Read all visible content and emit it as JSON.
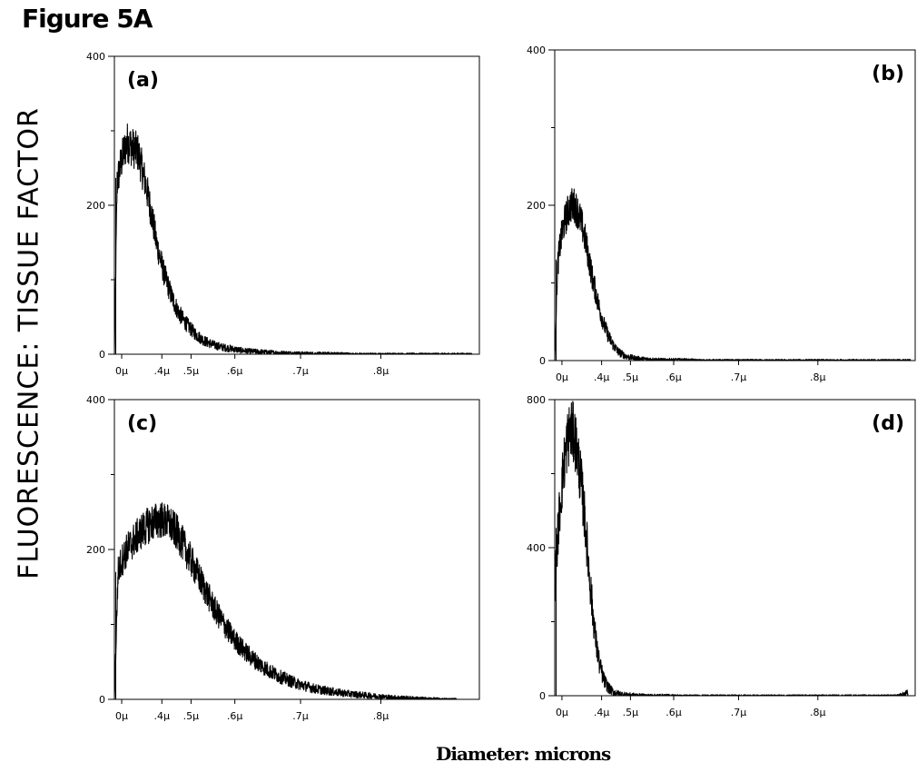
{
  "figure_title": "Figure 5A",
  "y_axis_label": "FLUORESCENCE:  TISSUE FACTOR",
  "x_axis_label": "Diameter:  microns",
  "chart_data": [
    {
      "type": "area",
      "panel_label": "(a)",
      "label_position": "top-left",
      "ylim": [
        0,
        400
      ],
      "yticks": [
        "0",
        "200",
        "400"
      ],
      "xticks": [
        "0µ",
        ".4µ",
        ".5µ",
        ".6µ",
        ".7µ",
        ".8µ"
      ],
      "series": [
        {
          "x": [
            0,
            3,
            6,
            10,
            14,
            18,
            22,
            26,
            30,
            34,
            38,
            42,
            46,
            50,
            54,
            58,
            62,
            66,
            70,
            75,
            80,
            85,
            90,
            95,
            100,
            110,
            120,
            130,
            140,
            150,
            165,
            180,
            200,
            220,
            240,
            260,
            280,
            300,
            320,
            340,
            360,
            380,
            392
          ],
          "y": [
            0,
            230,
            250,
            270,
            285,
            280,
            275,
            270,
            250,
            230,
            205,
            180,
            150,
            130,
            110,
            95,
            80,
            68,
            57,
            47,
            39,
            32,
            26,
            21,
            17,
            12,
            9,
            7,
            5,
            4,
            3,
            2,
            1.5,
            1,
            1,
            0.5,
            0.5,
            0.5,
            0.5,
            0.5,
            0.5,
            0.5,
            0.5
          ]
        }
      ]
    },
    {
      "type": "area",
      "panel_label": "(b)",
      "label_position": "top-right",
      "ylim": [
        0,
        400
      ],
      "yticks": [
        "0",
        "200",
        "400"
      ],
      "xticks": [
        "0µ",
        ".4µ",
        ".5µ",
        ".6µ",
        ".7µ",
        ".8µ"
      ],
      "series": [
        {
          "x": [
            0,
            3,
            6,
            10,
            14,
            18,
            22,
            26,
            30,
            34,
            38,
            42,
            46,
            50,
            55,
            60,
            65,
            70,
            75,
            80,
            90,
            100,
            110,
            120,
            140,
            160,
            180,
            200,
            240,
            280,
            320,
            360,
            395
          ],
          "y": [
            0,
            120,
            150,
            175,
            190,
            200,
            200,
            190,
            175,
            155,
            130,
            105,
            85,
            65,
            45,
            30,
            20,
            12,
            8,
            5,
            3,
            2,
            1.5,
            1,
            1,
            0.5,
            0.5,
            0.5,
            0.5,
            0.5,
            0.5,
            0.5,
            0.5
          ]
        }
      ]
    },
    {
      "type": "area",
      "panel_label": "(c)",
      "label_position": "top-left",
      "ylim": [
        0,
        400
      ],
      "yticks": [
        "0",
        "200",
        "400"
      ],
      "xticks": [
        "0µ",
        ".4µ",
        ".5µ",
        ".6µ",
        ".7µ",
        ".8µ"
      ],
      "series": [
        {
          "x": [
            0,
            4,
            8,
            14,
            20,
            30,
            40,
            50,
            60,
            70,
            80,
            90,
            100,
            110,
            120,
            130,
            140,
            150,
            160,
            170,
            180,
            190,
            200,
            220,
            240,
            260,
            280,
            300,
            320,
            340,
            360,
            375
          ],
          "y": [
            0,
            170,
            185,
            200,
            210,
            225,
            235,
            240,
            235,
            220,
            195,
            170,
            145,
            120,
            100,
            82,
            68,
            56,
            46,
            38,
            31,
            26,
            21,
            14,
            10,
            7,
            5,
            3,
            2,
            1,
            0.5,
            0.5
          ]
        }
      ]
    },
    {
      "type": "area",
      "panel_label": "(d)",
      "label_position": "top-right",
      "ylim": [
        0,
        800
      ],
      "yticks": [
        "0",
        "400",
        "800"
      ],
      "xticks": [
        "0µ",
        ".4µ",
        ".5µ",
        ".6µ",
        ".7µ",
        ".8µ"
      ],
      "series": [
        {
          "x": [
            0,
            3,
            6,
            10,
            14,
            18,
            22,
            26,
            30,
            34,
            38,
            42,
            46,
            50,
            55,
            60,
            65,
            70,
            80,
            90,
            100,
            120,
            140,
            160,
            200,
            240,
            280,
            320,
            360,
            380,
            388,
            392
          ],
          "y": [
            300,
            420,
            520,
            620,
            690,
            720,
            700,
            640,
            560,
            460,
            340,
            230,
            140,
            80,
            40,
            20,
            10,
            6,
            3,
            2,
            1,
            1,
            0.5,
            0.5,
            0.5,
            0.5,
            0.5,
            0.5,
            0.5,
            0.5,
            4,
            8
          ]
        }
      ]
    }
  ]
}
